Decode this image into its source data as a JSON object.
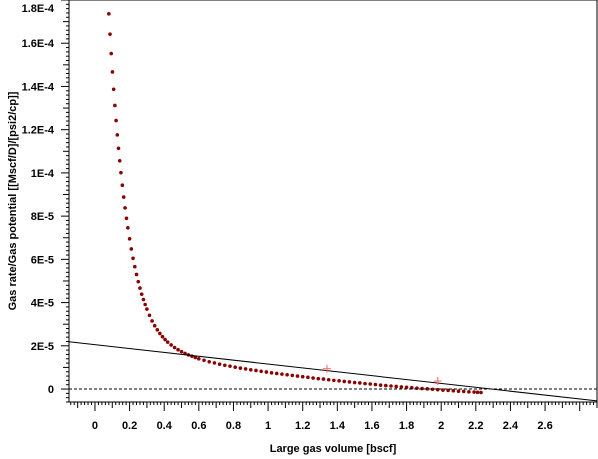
{
  "chart_data": {
    "type": "scatter",
    "title": "",
    "xlabel": "Large gas volume [bscf]",
    "ylabel": "Gas rate/Gas potential [[Mscf/D]/[psi2/cp]]",
    "xlim": [
      -0.15,
      2.9
    ],
    "ylim": [
      -6e-06,
      0.00018
    ],
    "x_ticks": [
      0,
      0.2,
      0.4,
      0.6,
      0.8,
      1,
      1.2,
      1.4,
      1.6,
      1.8,
      2,
      2.2,
      2.4,
      2.6
    ],
    "x_tick_labels": [
      "0",
      "0.2",
      "0.4",
      "0.6",
      "0.8",
      "1",
      "1.2",
      "1.4",
      "1.6",
      "1.8",
      "2",
      "2.2",
      "2.4",
      "2.6"
    ],
    "y_ticks": [
      0,
      2e-05,
      4e-05,
      6e-05,
      8e-05,
      0.0001,
      0.00012,
      0.00014,
      0.00016,
      0.00018
    ],
    "y_tick_labels": [
      "0",
      "2E-5",
      "4E-5",
      "6E-5",
      "8E-5",
      "1E-4",
      "1.2E-4",
      "1.4E-4",
      "1.6E-4",
      "1.8E-4"
    ],
    "grid": false,
    "series": [
      {
        "kind": "points",
        "color": "#8b0000",
        "x": [
          0.08,
          0.087,
          0.094,
          0.101,
          0.108,
          0.115,
          0.122,
          0.129,
          0.136,
          0.143,
          0.15,
          0.158,
          0.166,
          0.174,
          0.182,
          0.19,
          0.2,
          0.21,
          0.22,
          0.23,
          0.24,
          0.25,
          0.26,
          0.27,
          0.28,
          0.29,
          0.3,
          0.315,
          0.33,
          0.345,
          0.36,
          0.375,
          0.39,
          0.405,
          0.42,
          0.44,
          0.46,
          0.48,
          0.5,
          0.52,
          0.54,
          0.56,
          0.58,
          0.6,
          0.63,
          0.66,
          0.69,
          0.72,
          0.75,
          0.78,
          0.81,
          0.84,
          0.87,
          0.9,
          0.93,
          0.96,
          0.99,
          1.02,
          1.05,
          1.08,
          1.11,
          1.14,
          1.17,
          1.2,
          1.23,
          1.26,
          1.29,
          1.32,
          1.35,
          1.38,
          1.41,
          1.44,
          1.47,
          1.5,
          1.53,
          1.56,
          1.59,
          1.62,
          1.65,
          1.68,
          1.71,
          1.74,
          1.77,
          1.8,
          1.83,
          1.86,
          1.89,
          1.92,
          1.95,
          1.98,
          2.01,
          2.04,
          2.07,
          2.1,
          2.13,
          2.16,
          2.19,
          2.21,
          2.23
        ],
        "y": [
          0.0001736,
          0.0001642,
          0.0001552,
          0.0001467,
          0.0001387,
          0.0001312,
          0.0001242,
          0.0001176,
          0.0001114,
          0.0001056,
          0.0001001,
          9.43e-05,
          8.88e-05,
          8.38e-05,
          7.9e-05,
          7.46e-05,
          6.95e-05,
          6.48e-05,
          6.05e-05,
          5.66e-05,
          5.3e-05,
          4.97e-05,
          4.67e-05,
          4.39e-05,
          4.14e-05,
          3.91e-05,
          3.7e-05,
          3.41e-05,
          3.15e-05,
          2.93e-05,
          2.74e-05,
          2.57e-05,
          2.42e-05,
          2.29e-05,
          2.17e-05,
          2.04e-05,
          1.92e-05,
          1.82e-05,
          1.73e-05,
          1.65e-05,
          1.58e-05,
          1.52e-05,
          1.46e-05,
          1.4e-05,
          1.33e-05,
          1.26e-05,
          1.21e-05,
          1.15e-05,
          1.1e-05,
          1.06e-05,
          1.01e-05,
          9.7e-06,
          9.3e-06,
          8.9e-06,
          8.6e-06,
          8.2e-06,
          7.9e-06,
          7.5e-06,
          7.2e-06,
          6.9e-06,
          6.6e-06,
          6.3e-06,
          6e-06,
          5.7e-06,
          5.4e-06,
          5.1e-06,
          4.8e-06,
          4.6e-06,
          4.3e-06,
          4e-06,
          3.8e-06,
          3.5e-06,
          3.3e-06,
          3e-06,
          2.8e-06,
          2.5e-06,
          2.3e-06,
          2.1e-06,
          1.8e-06,
          1.6e-06,
          1.4e-06,
          1.2e-06,
          1e-06,
          8e-07,
          6e-07,
          4e-07,
          2e-07,
          1e-07,
          -1e-07,
          -3e-07,
          -5e-07,
          -6e-07,
          -8e-07,
          -1e-06,
          -1.1e-06,
          -1.3e-06,
          -1.4e-06,
          -1.5e-06,
          -1.6e-06
        ]
      },
      {
        "kind": "line",
        "color": "#000000",
        "x": [
          -0.15,
          2.9
        ],
        "y": [
          2.19e-05,
          -5.5e-06
        ]
      },
      {
        "kind": "dashed-line",
        "color": "#000000",
        "x": [
          -0.15,
          2.9
        ],
        "y": [
          0,
          0
        ]
      },
      {
        "kind": "markers",
        "color": "#ff6666",
        "x": [
          1.34,
          1.98
        ],
        "y": [
          9.4e-06,
          3.7e-06
        ]
      }
    ]
  }
}
